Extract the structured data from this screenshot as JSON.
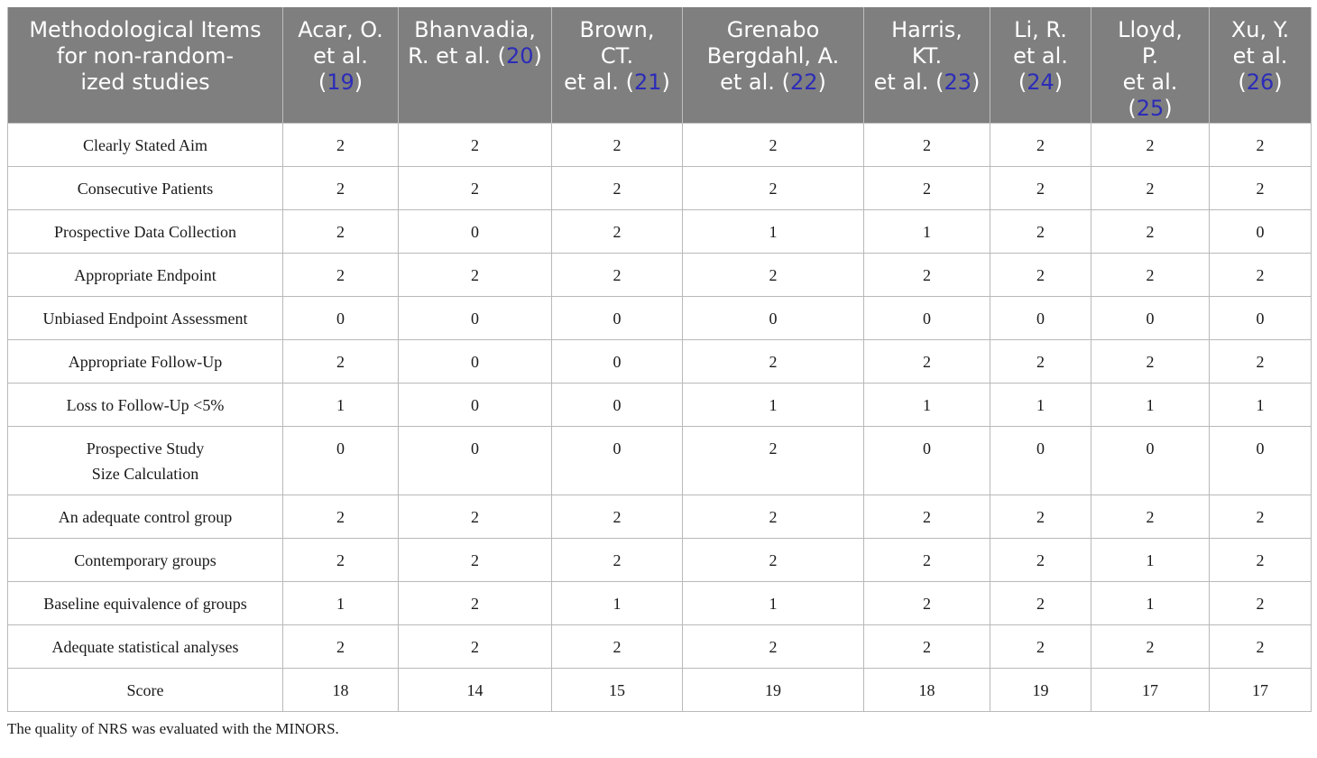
{
  "table": {
    "header": {
      "item_col": "Methodological Items\nfor non-random-\nized studies",
      "studies": [
        {
          "text": "Acar, O.\net al.\n(",
          "ref": "19",
          "close": ")"
        },
        {
          "text": "Bhanvadia,\nR. et al. (",
          "ref": "20",
          "close": ")"
        },
        {
          "text": "Brown,\nCT.\net al. (",
          "ref": "21",
          "close": ")"
        },
        {
          "text": "Grenabo\nBergdahl, A.\net al. (",
          "ref": "22",
          "close": ")"
        },
        {
          "text": "Harris,\nKT.\net al. (",
          "ref": "23",
          "close": ")"
        },
        {
          "text": "Li, R.\net al.\n(",
          "ref": "24",
          "close": ")"
        },
        {
          "text": "Lloyd,\nP.\net al.\n(",
          "ref": "25",
          "close": ")"
        },
        {
          "text": "Xu, Y.\net al.\n(",
          "ref": "26",
          "close": ")"
        }
      ]
    },
    "rows": [
      {
        "item": "Clearly Stated Aim",
        "values": [
          "2",
          "2",
          "2",
          "2",
          "2",
          "2",
          "2",
          "2"
        ]
      },
      {
        "item": "Consecutive Patients",
        "values": [
          "2",
          "2",
          "2",
          "2",
          "2",
          "2",
          "2",
          "2"
        ]
      },
      {
        "item": "Prospective Data Collection",
        "values": [
          "2",
          "0",
          "2",
          "1",
          "1",
          "2",
          "2",
          "0"
        ]
      },
      {
        "item": "Appropriate Endpoint",
        "values": [
          "2",
          "2",
          "2",
          "2",
          "2",
          "2",
          "2",
          "2"
        ]
      },
      {
        "item": "Unbiased Endpoint Assessment",
        "values": [
          "0",
          "0",
          "0",
          "0",
          "0",
          "0",
          "0",
          "0"
        ]
      },
      {
        "item": "Appropriate Follow-Up",
        "values": [
          "2",
          "0",
          "0",
          "2",
          "2",
          "2",
          "2",
          "2"
        ]
      },
      {
        "item": "Loss to Follow-Up <5%",
        "values": [
          "1",
          "0",
          "0",
          "1",
          "1",
          "1",
          "1",
          "1"
        ]
      },
      {
        "item": "Prospective Study\nSize Calculation",
        "values": [
          "0",
          "0",
          "0",
          "2",
          "0",
          "0",
          "0",
          "0"
        ]
      },
      {
        "item": "An adequate control group",
        "values": [
          "2",
          "2",
          "2",
          "2",
          "2",
          "2",
          "2",
          "2"
        ]
      },
      {
        "item": "Contemporary groups",
        "values": [
          "2",
          "2",
          "2",
          "2",
          "2",
          "2",
          "1",
          "2"
        ]
      },
      {
        "item": "Baseline equivalence of groups",
        "values": [
          "1",
          "2",
          "1",
          "1",
          "2",
          "2",
          "1",
          "2"
        ]
      },
      {
        "item": "Adequate statistical analyses",
        "values": [
          "2",
          "2",
          "2",
          "2",
          "2",
          "2",
          "2",
          "2"
        ]
      },
      {
        "item": "Score",
        "values": [
          "18",
          "14",
          "15",
          "19",
          "18",
          "19",
          "17",
          "17"
        ]
      }
    ]
  },
  "footnote": "The quality of NRS was evaluated with the MINORS."
}
